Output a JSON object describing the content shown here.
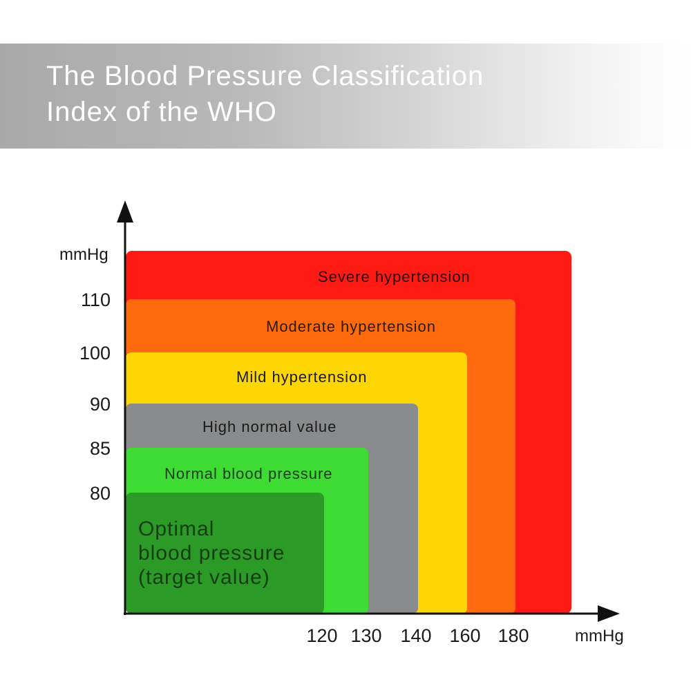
{
  "header": {
    "title_line1": "The Blood Pressure Classification",
    "title_line2": "Index of the WHO"
  },
  "chart_data": {
    "type": "nested-zones",
    "title": "The Blood Pressure Classification Index of the WHO",
    "xlabel": "mmHg",
    "ylabel": "mmHg",
    "xticks": [
      120,
      130,
      140,
      160,
      180
    ],
    "yticks": [
      80,
      85,
      90,
      100,
      110
    ],
    "zones": [
      {
        "name": "Severe hypertension",
        "x_max": null,
        "y_max": null,
        "color": "#ff1a14",
        "text_color": "#2a0a08"
      },
      {
        "name": "Moderate hypertension",
        "x_max": 180,
        "y_max": 110,
        "color": "#ff6a0c",
        "text_color": "#2a1a0a"
      },
      {
        "name": "Mild hypertension",
        "x_max": 160,
        "y_max": 100,
        "color": "#fdd603",
        "text_color": "#1a1a1a"
      },
      {
        "name": "High normal value",
        "x_max": 140,
        "y_max": 90,
        "color": "#898b8d",
        "text_color": "#1a1a1a"
      },
      {
        "name": "Normal blood pressure",
        "x_max": 130,
        "y_max": 85,
        "color": "#3ddb34",
        "text_color": "#1a3a1a"
      },
      {
        "name": "Optimal",
        "name_line2": "blood pressure",
        "name_line3": "(target value)",
        "x_max": 120,
        "y_max": 80,
        "color": "#2c9a26",
        "text_color": "#143d12"
      }
    ]
  },
  "colors": {
    "axis": "#111111",
    "title_text": "#ffffff"
  }
}
